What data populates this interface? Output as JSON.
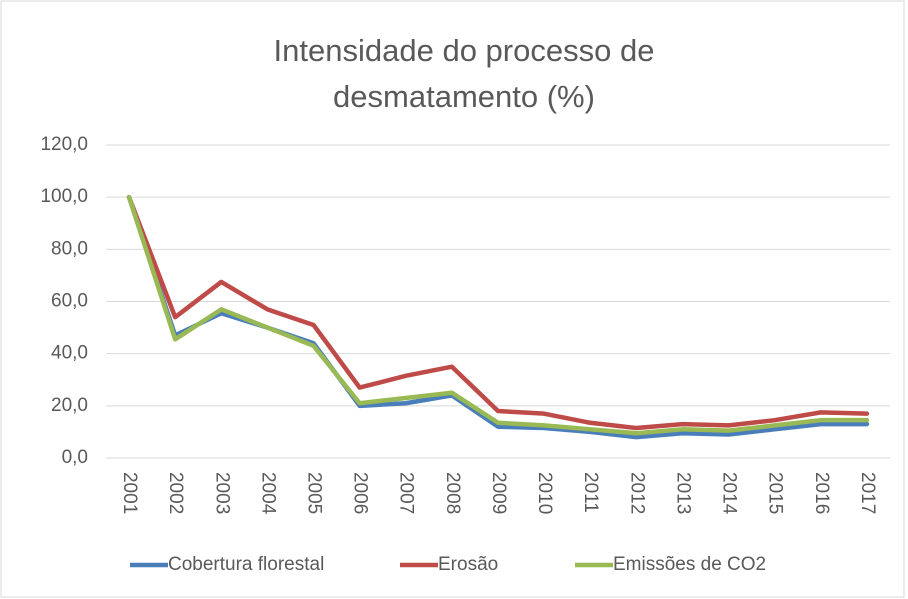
{
  "chart_data": {
    "type": "line",
    "title": "Intensidade do processo de desmatamento (%)",
    "categories": [
      "2001",
      "2002",
      "2003",
      "2004",
      "2005",
      "2006",
      "2007",
      "2008",
      "2009",
      "2010",
      "2011",
      "2012",
      "2013",
      "2014",
      "2015",
      "2016",
      "2017"
    ],
    "series": [
      {
        "name": "Cobertura florestal",
        "color": "#4a7ebb",
        "values": [
          100,
          47,
          55.5,
          50,
          44,
          20,
          21,
          24,
          12,
          11.5,
          10,
          8,
          9.5,
          9,
          11,
          13,
          13
        ]
      },
      {
        "name": "Erosão",
        "color": "#be4b48",
        "values": [
          100,
          54,
          67.5,
          57,
          51,
          27,
          31.5,
          35,
          18,
          17,
          13.5,
          11.5,
          13,
          12.5,
          14.5,
          17.5,
          17
        ]
      },
      {
        "name": "Emissões de CO2",
        "color": "#98b954",
        "values": [
          100,
          45.5,
          57,
          50,
          43,
          21,
          23,
          25,
          13.5,
          12.5,
          11,
          9.5,
          11,
          10.5,
          12.5,
          14.5,
          14.5
        ]
      }
    ],
    "ylim": [
      0,
      120
    ],
    "yticks": [
      {
        "value": 0,
        "label": "0,0"
      },
      {
        "value": 20,
        "label": "20,0"
      },
      {
        "value": 40,
        "label": "40,0"
      },
      {
        "value": 60,
        "label": "60,0"
      },
      {
        "value": 80,
        "label": "80,0"
      },
      {
        "value": 100,
        "label": "100,0"
      },
      {
        "value": 120,
        "label": "120,0"
      }
    ],
    "grid": true,
    "legend": "bottom"
  }
}
